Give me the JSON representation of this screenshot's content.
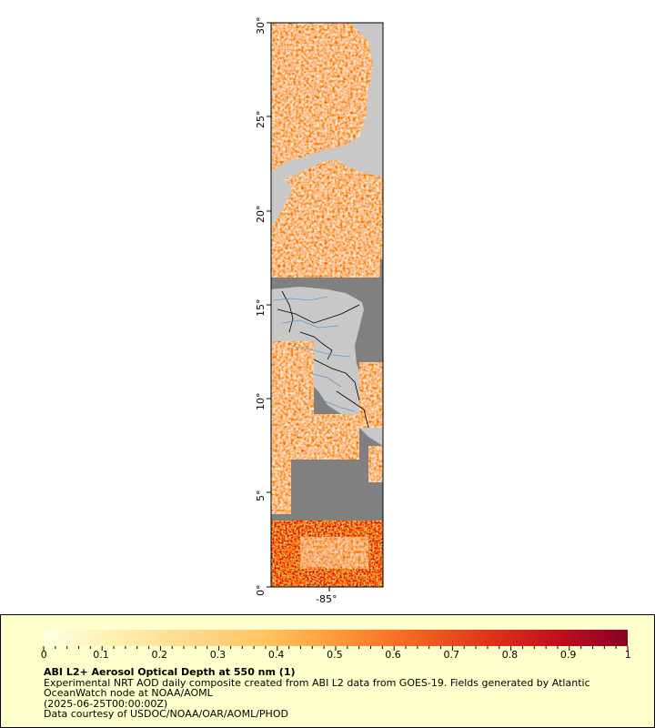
{
  "map": {
    "y_axis_labels": [
      "0°",
      "5°",
      "10°",
      "15°",
      "20°",
      "25°",
      "30°"
    ],
    "x_axis_labels": [
      "-85°"
    ],
    "colors": {
      "land": "#c8c8c8",
      "no_data": "#808080",
      "borders": "#000000",
      "rivers": "#6699cc"
    }
  },
  "legend": {
    "ticks": [
      "0",
      "0.1",
      "0.2",
      "0.3",
      "0.4",
      "0.5",
      "0.6",
      "0.7",
      "0.8",
      "0.9",
      "1"
    ],
    "range": [
      0,
      1
    ],
    "colormap": [
      "#ffffe5",
      "#fff0b0",
      "#fed98e",
      "#fec45e",
      "#fe9a3b",
      "#f66a24",
      "#e03a18",
      "#c0101e",
      "#8b0026"
    ]
  },
  "footer": {
    "title": "ABI L2+ Aerosol Optical Depth at 550 nm (1)",
    "line1": "Experimental NRT AOD daily composite created from ABI L2 data from GOES-19. Fields generated by Atlantic",
    "line2": "OceanWatch node at NOAA/AOML",
    "line3": "(2025-06-25T00:00:00Z)",
    "line4": "Data courtesy of USDOC/NOAA/OAR/AOML/PHOD"
  }
}
